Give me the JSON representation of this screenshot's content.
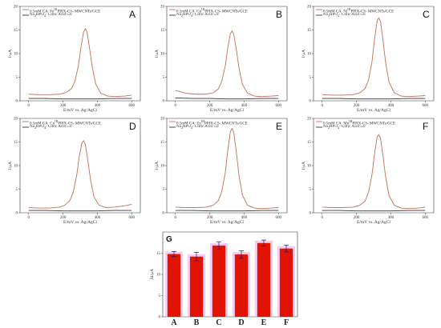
{
  "colors": {
    "cv_curve": "#c0705a",
    "baseline": "#333333",
    "bar_fill": "#e01400",
    "bar_glow": "#f7a8e6",
    "error_bar": "#1a1a6e"
  },
  "chart_data": [
    {
      "type": "line",
      "panel_label": "A",
      "xlabel": "E/mV vs. Ag/AgCl",
      "ylabel": "I/μA",
      "xlim": [
        -50,
        650
      ],
      "ylim": [
        0,
        20
      ],
      "xticks": [
        0,
        200,
        400,
        600
      ],
      "yticks": [
        0,
        5,
        10,
        15,
        20
      ],
      "grid": false,
      "legend_position": "top-left",
      "series": [
        {
          "name_html": "0.5mM CA&nbsp; Fe<sup>III</sup>PPIX-CS- MWCNTs/GCE",
          "role": "cv",
          "x": [
            0,
            60,
            120,
            180,
            220,
            250,
            270,
            290,
            305,
            320,
            330,
            340,
            355,
            370,
            390,
            420,
            460,
            500,
            560,
            600
          ],
          "y": [
            1.4,
            1.3,
            1.3,
            1.4,
            1.8,
            2.6,
            4.2,
            7.5,
            11.5,
            14.6,
            15.3,
            14.5,
            11.0,
            7.2,
            3.6,
            1.6,
            1.0,
            0.9,
            1.0,
            1.2
          ]
        },
        {
          "name_html": "Na<sub>2</sub>HPO<sub>4</sub>- Citric Acid 5.0",
          "role": "baseline",
          "x": [
            0,
            100,
            200,
            300,
            400,
            500,
            600
          ],
          "y": [
            0.5,
            0.5,
            0.4,
            0.4,
            0.4,
            0.5,
            0.5
          ]
        }
      ]
    },
    {
      "type": "line",
      "panel_label": "B",
      "xlabel": "E/mV vs. Ag/AgCl",
      "ylabel": "I/μA",
      "xlim": [
        -50,
        650
      ],
      "ylim": [
        0,
        20
      ],
      "xticks": [
        0,
        200,
        400,
        600
      ],
      "yticks": [
        0,
        5,
        10,
        15,
        20
      ],
      "grid": false,
      "legend_position": "top-left",
      "series": [
        {
          "name_html": "0.5mM CA&nbsp; Co<sup>III</sup>PPIX-CS- MWCNTs/GCE",
          "role": "cv",
          "x": [
            0,
            60,
            120,
            180,
            220,
            250,
            270,
            290,
            305,
            320,
            330,
            340,
            355,
            370,
            390,
            420,
            460,
            500,
            560,
            600
          ],
          "y": [
            2.2,
            1.6,
            1.4,
            1.4,
            1.7,
            2.5,
            4.1,
            7.3,
            11.2,
            14.2,
            14.8,
            14.1,
            10.8,
            7.0,
            3.5,
            1.6,
            1.0,
            0.9,
            1.0,
            1.1
          ]
        },
        {
          "name_html": "Na<sub>2</sub>HPO<sub>4</sub>- Citric Acid 5.0",
          "role": "baseline",
          "x": [
            0,
            100,
            200,
            300,
            400,
            500,
            600
          ],
          "y": [
            0.6,
            0.5,
            0.5,
            0.4,
            0.4,
            0.5,
            0.5
          ]
        }
      ]
    },
    {
      "type": "line",
      "panel_label": "C",
      "xlabel": "E/mV vs. Ag/AgCl",
      "ylabel": "I/μA",
      "xlim": [
        -50,
        650
      ],
      "ylim": [
        0,
        20
      ],
      "xticks": [
        0,
        200,
        400,
        600
      ],
      "yticks": [
        0,
        5,
        10,
        15,
        20
      ],
      "grid": false,
      "legend_position": "top-left",
      "series": [
        {
          "name_html": "0.5mM CA&nbsp; Ni<sup>III</sup>PPIX-CS- MWCNTs/GCE",
          "role": "cv",
          "x": [
            0,
            60,
            120,
            180,
            220,
            250,
            270,
            290,
            305,
            320,
            330,
            340,
            355,
            370,
            390,
            420,
            460,
            500,
            560,
            600
          ],
          "y": [
            1.3,
            1.2,
            1.2,
            1.3,
            1.7,
            2.6,
            4.4,
            8.2,
            13.0,
            16.9,
            17.6,
            16.8,
            12.6,
            8.0,
            3.9,
            1.7,
            1.0,
            0.9,
            1.0,
            1.1
          ]
        },
        {
          "name_html": "Na<sub>2</sub>HPO<sub>4</sub>- Citric Acid 5.0",
          "role": "baseline",
          "x": [
            0,
            100,
            200,
            300,
            400,
            500,
            600
          ],
          "y": [
            0.5,
            0.5,
            0.4,
            0.4,
            0.4,
            0.5,
            0.5
          ]
        }
      ]
    },
    {
      "type": "line",
      "panel_label": "D",
      "xlabel": "E/mV vs. Ag/AgCl",
      "ylabel": "I/μA",
      "xlim": [
        -50,
        650
      ],
      "ylim": [
        0,
        20
      ],
      "xticks": [
        0,
        200,
        400,
        600
      ],
      "yticks": [
        0,
        5,
        10,
        15,
        20
      ],
      "grid": false,
      "legend_position": "top-left",
      "series": [
        {
          "name_html": "0.5mM CA&nbsp; Cu<sup>III</sup>PPIX-CS- MWCNTs/GCE",
          "role": "cv",
          "x": [
            0,
            60,
            120,
            180,
            210,
            240,
            260,
            280,
            295,
            310,
            320,
            330,
            345,
            360,
            380,
            410,
            450,
            500,
            560,
            600
          ],
          "y": [
            1.1,
            1.0,
            1.0,
            1.2,
            1.6,
            2.6,
            4.4,
            8.0,
            12.0,
            14.8,
            15.3,
            14.5,
            11.0,
            7.0,
            3.4,
            1.6,
            1.1,
            1.2,
            1.5,
            1.8
          ]
        },
        {
          "name_html": "Na<sub>2</sub>HPO<sub>4</sub>- Citric Acid 5.0",
          "role": "baseline",
          "x": [
            0,
            100,
            200,
            300,
            400,
            500,
            600
          ],
          "y": [
            0.5,
            0.5,
            0.4,
            0.4,
            0.4,
            0.5,
            0.5
          ]
        }
      ]
    },
    {
      "type": "line",
      "panel_label": "E",
      "xlabel": "E/mV vs. Ag/AgCl",
      "ylabel": "I/μA",
      "xlim": [
        -50,
        650
      ],
      "ylim": [
        0,
        20
      ],
      "xticks": [
        0,
        200,
        400,
        600
      ],
      "yticks": [
        0,
        5,
        10,
        15,
        20
      ],
      "grid": false,
      "legend_position": "top-left",
      "series": [
        {
          "name_html": "0.5mM CA&nbsp; Zn<sup>III</sup>PPIX-CS- MWCNTs/GCE",
          "role": "cv",
          "x": [
            0,
            60,
            120,
            180,
            220,
            250,
            270,
            290,
            305,
            320,
            330,
            340,
            355,
            370,
            390,
            420,
            460,
            500,
            560,
            600
          ],
          "y": [
            1.2,
            1.1,
            1.1,
            1.2,
            1.6,
            2.6,
            4.5,
            8.4,
            13.2,
            17.2,
            17.9,
            17.0,
            12.8,
            8.0,
            3.8,
            1.6,
            1.0,
            0.9,
            1.0,
            1.1
          ]
        },
        {
          "name_html": "Na<sub>2</sub>HPO<sub>4</sub>- Citric Acid 5.0",
          "role": "baseline",
          "x": [
            0,
            100,
            200,
            300,
            400,
            500,
            600
          ],
          "y": [
            0.5,
            0.5,
            0.4,
            0.4,
            0.4,
            0.5,
            0.5
          ]
        }
      ]
    },
    {
      "type": "line",
      "panel_label": "F",
      "xlabel": "E/mV vs. Ag/AgCl",
      "ylabel": "I/μA",
      "xlim": [
        -50,
        650
      ],
      "ylim": [
        0,
        20
      ],
      "xticks": [
        0,
        200,
        400,
        600
      ],
      "yticks": [
        0,
        5,
        10,
        15,
        20
      ],
      "grid": false,
      "legend_position": "top-left",
      "series": [
        {
          "name_html": "0.5mM CA&nbsp; Mn<sup>III</sup>PPIX-CS- MWCNTs/GCE",
          "role": "cv",
          "x": [
            0,
            60,
            120,
            180,
            220,
            250,
            270,
            290,
            305,
            320,
            330,
            340,
            355,
            370,
            390,
            420,
            460,
            500,
            560,
            600
          ],
          "y": [
            1.2,
            1.1,
            1.1,
            1.2,
            1.6,
            2.5,
            4.3,
            8.0,
            12.5,
            16.0,
            16.6,
            15.8,
            11.9,
            7.5,
            3.6,
            1.6,
            1.0,
            0.9,
            1.0,
            1.2
          ]
        },
        {
          "name_html": "Na<sub>2</sub>HPO<sub>4</sub>- Citric Acid 5.0",
          "role": "baseline",
          "x": [
            0,
            100,
            200,
            300,
            400,
            500,
            600
          ],
          "y": [
            0.5,
            0.5,
            0.4,
            0.4,
            0.4,
            0.5,
            0.5
          ]
        }
      ]
    },
    {
      "type": "bar",
      "panel_label": "G",
      "ylabel": "ΔI/μA",
      "ylim": [
        0,
        20
      ],
      "yticks": [
        0,
        5,
        10,
        15
      ],
      "grid": false,
      "categories": [
        "A",
        "B",
        "C",
        "D",
        "E",
        "F"
      ],
      "values": [
        14.8,
        14.2,
        16.8,
        14.7,
        17.4,
        16.1
      ],
      "errors": [
        0.6,
        1.0,
        0.9,
        0.9,
        0.7,
        0.8
      ]
    }
  ]
}
